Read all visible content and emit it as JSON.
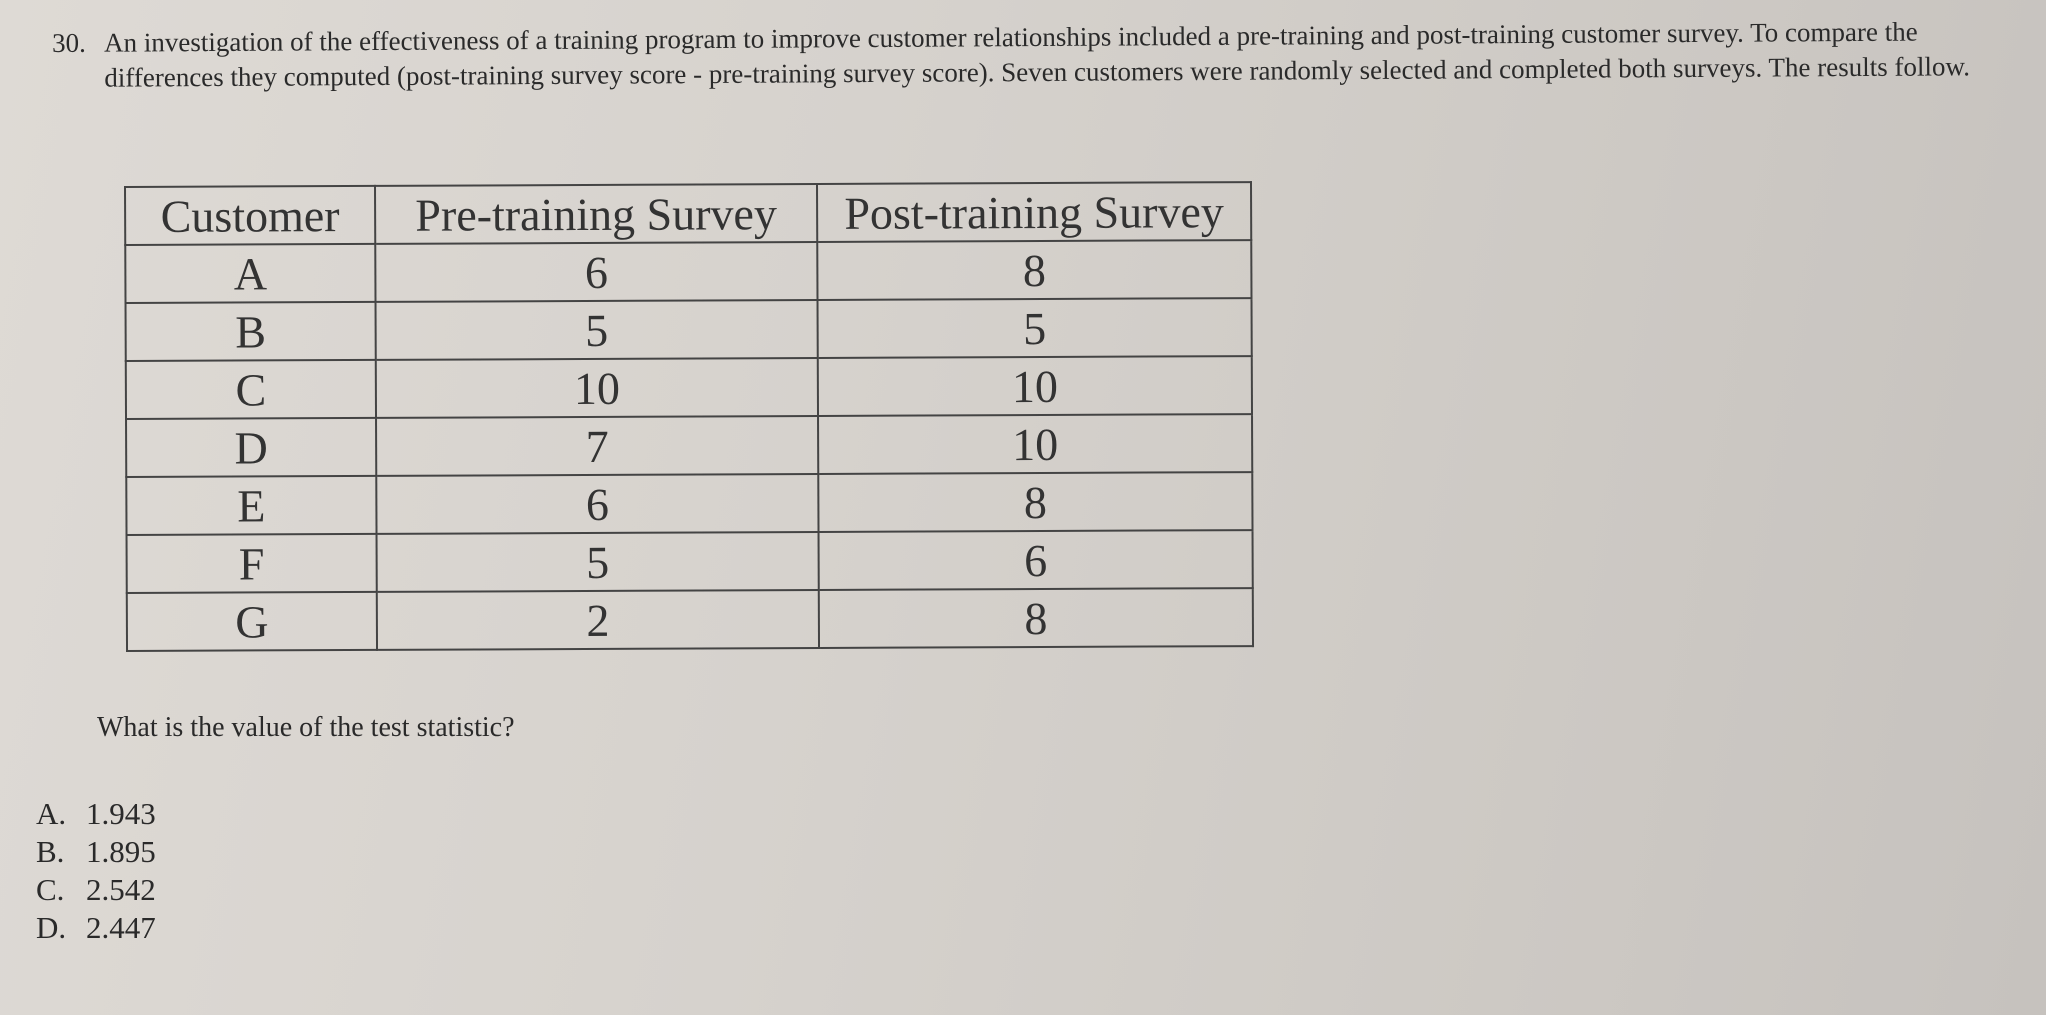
{
  "question": {
    "number": "30.",
    "text": "An investigation of the effectiveness of a training program to improve customer relationships included a pre-training and post-training customer survey. To compare the differences they computed (post-training survey score - pre-training survey score). Seven customers were randomly selected and completed both surveys. The results follow."
  },
  "table": {
    "headers": [
      "Customer",
      "Pre-training Survey",
      "Post-training Survey"
    ],
    "rows": [
      [
        "A",
        "6",
        "8"
      ],
      [
        "B",
        "5",
        "5"
      ],
      [
        "C",
        "10",
        "10"
      ],
      [
        "D",
        "7",
        "10"
      ],
      [
        "E",
        "6",
        "8"
      ],
      [
        "F",
        "5",
        "6"
      ],
      [
        "G",
        "2",
        "8"
      ]
    ]
  },
  "prompt": "What is the value of the test statistic?",
  "options": [
    {
      "letter": "A.",
      "value": "1.943"
    },
    {
      "letter": "B.",
      "value": "1.895"
    },
    {
      "letter": "C.",
      "value": "2.542"
    },
    {
      "letter": "D.",
      "value": "2.447"
    }
  ]
}
